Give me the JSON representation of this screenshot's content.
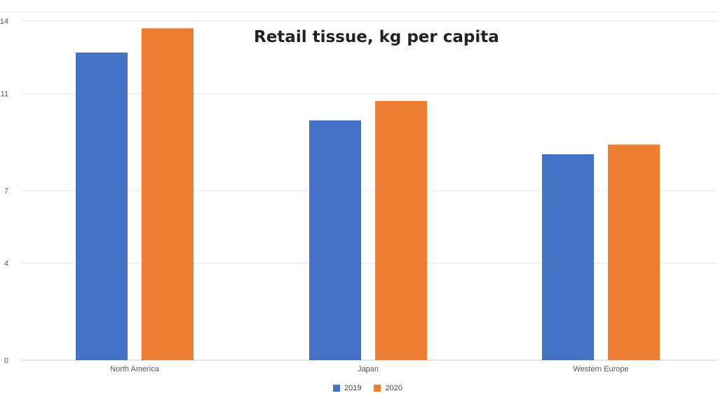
{
  "chart_data": {
    "type": "bar",
    "title": "Retail tissue, kg per capita",
    "categories": [
      "North America",
      "Japan",
      "Western Europe"
    ],
    "series": [
      {
        "name": "2019",
        "color": "#4472c4",
        "values": [
          12.7,
          9.9,
          8.5
        ]
      },
      {
        "name": "2020",
        "color": "#ed7d31",
        "values": [
          13.7,
          10.7,
          8.9
        ]
      }
    ],
    "yticks": [
      "0",
      "4",
      "7",
      "11",
      "14"
    ],
    "ylim": [
      0,
      14
    ],
    "grid": true,
    "legend_position": "bottom"
  }
}
